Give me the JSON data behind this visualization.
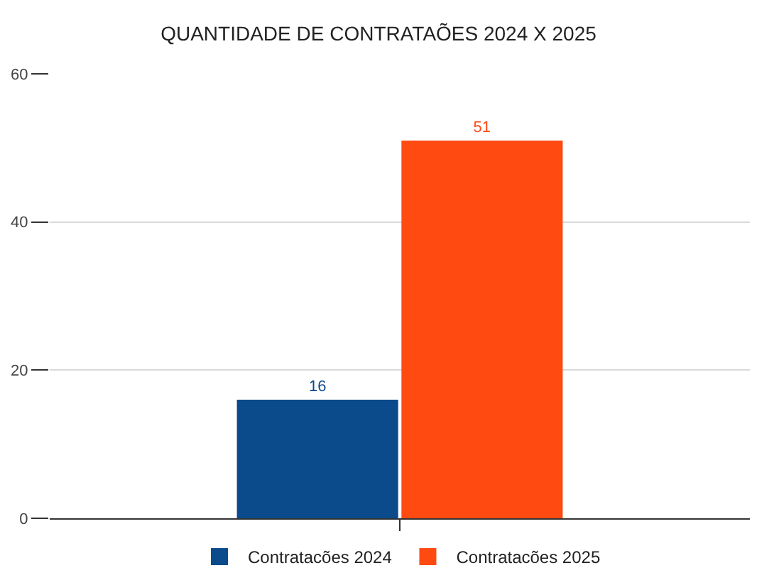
{
  "chart_data": {
    "type": "bar",
    "title": "QUANTIDADE DE CONTRATAÕES 2024 X 2025",
    "categories": [
      null
    ],
    "series": [
      {
        "name": "Contratacões 2024",
        "color": "#0b4a8b",
        "values": [
          16
        ]
      },
      {
        "name": "Contratacões 2025",
        "color": "#ff4a12",
        "values": [
          51
        ]
      }
    ],
    "ylim": [
      0,
      60
    ],
    "yticks": [
      0,
      20,
      40,
      60
    ],
    "grid": "y",
    "legend": "bottom",
    "data_labels": true
  }
}
